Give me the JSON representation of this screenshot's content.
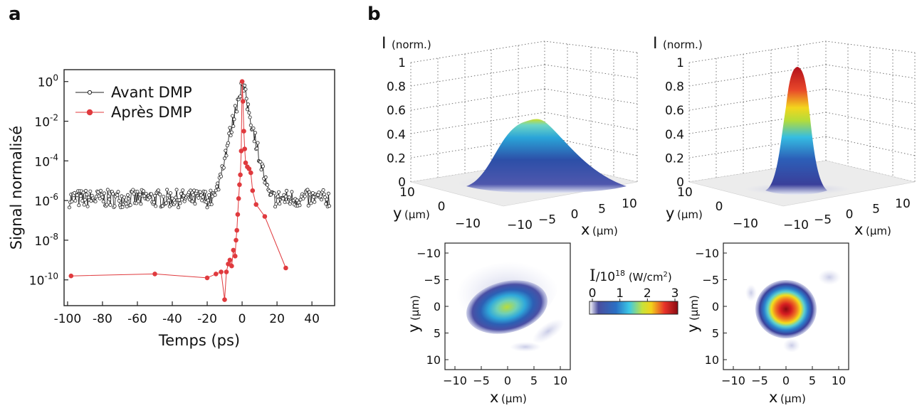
{
  "panels": {
    "a": "a",
    "b": "b"
  },
  "chart_data": [
    {
      "type": "line",
      "panel": "a",
      "xlabel": "Temps (ps)",
      "ylabel": "Signal normalisé",
      "xlim": [
        -102,
        53
      ],
      "y_scale": "log",
      "ylim_log10": [
        -11.3,
        0.6
      ],
      "xticks": [
        "-100",
        "-80",
        "-60",
        "-40",
        "-20",
        "0",
        "20",
        "40"
      ],
      "xtick_values": [
        -100,
        -80,
        -60,
        -40,
        -20,
        0,
        20,
        40
      ],
      "ytick_exponents": [
        0,
        -2,
        -4,
        -6,
        -8,
        -10
      ],
      "ytick_base": "10",
      "legend_position": "top-left",
      "grid": false,
      "series": [
        {
          "name": "Avant DMP",
          "color": "#222222",
          "marker": "open-circle",
          "x_range": [
            -99,
            50
          ],
          "baseline_log10": -5.9,
          "peak_log10": 0,
          "peak_x": 0
        },
        {
          "name": "Après DMP",
          "color": "#e03a3e",
          "marker": "filled-circle",
          "points": [
            [
              -98,
              -9.8
            ],
            [
              -50,
              -9.7
            ],
            [
              -20,
              -9.9
            ],
            [
              -15,
              -9.7
            ],
            [
              -12,
              -9.6
            ],
            [
              -10,
              -11
            ],
            [
              -9,
              -9.6
            ],
            [
              -8,
              -9.2
            ],
            [
              -7,
              -9
            ],
            [
              -6,
              -9.3
            ],
            [
              -5,
              -8.5
            ],
            [
              -4,
              -8.8
            ],
            [
              -3.5,
              -8
            ],
            [
              -3,
              -7.5
            ],
            [
              -2.5,
              -6.7
            ],
            [
              -2,
              -5.9
            ],
            [
              -1.5,
              -5.2
            ],
            [
              -1,
              -4.7
            ],
            [
              -0.5,
              -3.5
            ],
            [
              0,
              0
            ],
            [
              0.5,
              -1
            ],
            [
              1,
              -2.5
            ],
            [
              1.5,
              -3.4
            ],
            [
              2,
              -4.1
            ],
            [
              3,
              -4.3
            ],
            [
              4,
              -4.4
            ],
            [
              5,
              -4.6
            ],
            [
              6,
              -5.5
            ],
            [
              8,
              -6.2
            ],
            [
              13,
              -6.8
            ],
            [
              25,
              -9.4
            ]
          ]
        }
      ]
    },
    {
      "type": "heatmap",
      "panel": "b",
      "subtype": "surface-3d",
      "position": "top-left",
      "zlabel": "I",
      "zunit": "(norm.)",
      "xlabel": "x",
      "ylabel": "y",
      "unit": "(μm)",
      "zticks": [
        "0",
        "0.2",
        "0.4",
        "0.6",
        "0.8",
        "1"
      ],
      "xticks": [
        "−10",
        "−5",
        "0",
        "5",
        "10"
      ],
      "yticks": [
        "10",
        "0",
        "−10"
      ],
      "peak": 0.52
    },
    {
      "type": "heatmap",
      "panel": "b",
      "subtype": "surface-3d",
      "position": "top-right",
      "zlabel": "I",
      "zunit": "(norm.)",
      "xlabel": "x",
      "ylabel": "y",
      "unit": "(μm)",
      "zticks": [
        "0",
        "0.2",
        "0.4",
        "0.6",
        "0.8",
        "1"
      ],
      "xticks": [
        "−10",
        "−5",
        "0",
        "5",
        "10"
      ],
      "yticks": [
        "10",
        "0",
        "−10"
      ],
      "peak": 1.0
    },
    {
      "type": "heatmap",
      "panel": "b",
      "position": "bottom-left",
      "xlabel": "x",
      "ylabel": "y",
      "unit": "(μm)",
      "xticks": [
        "−10",
        "−5",
        "0",
        "5",
        "10"
      ],
      "yticks": [
        "−10",
        "−5",
        "0",
        "5",
        "10"
      ],
      "peak_value": 1.7
    },
    {
      "type": "heatmap",
      "panel": "b",
      "position": "bottom-right",
      "xlabel": "x",
      "ylabel": "y",
      "unit": "(μm)",
      "xticks": [
        "−10",
        "−5",
        "0",
        "5",
        "10"
      ],
      "yticks": [
        "−10",
        "−5",
        "0",
        "5",
        "10"
      ],
      "peak_value": 3.0
    }
  ],
  "colorbar": {
    "label_symbol": "I",
    "label_rest": "/10",
    "label_exp": "18",
    "label_unit_open": " (W/cm",
    "label_unit_exp": "2",
    "label_unit_close": ")",
    "ticks": [
      "0",
      "1",
      "2",
      "3"
    ],
    "colors": [
      "#ffffff",
      "#2b2f8f",
      "#2a6fc4",
      "#3cc8e6",
      "#c8e23a",
      "#f2d21b",
      "#e8332a",
      "#8b0a12"
    ]
  }
}
